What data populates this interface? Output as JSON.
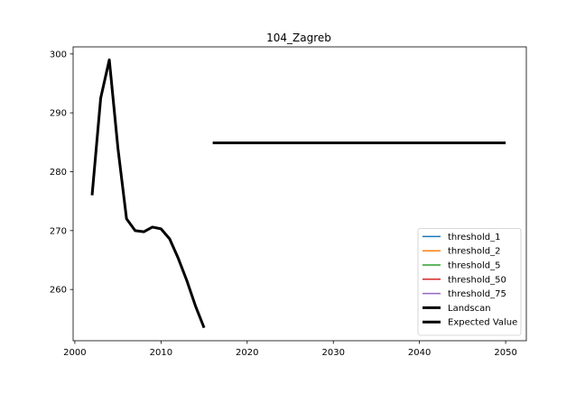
{
  "chart_data": {
    "type": "line",
    "title": "104_Zagreb",
    "xlabel": "",
    "ylabel": "",
    "xlim": [
      1999.8,
      2052.4
    ],
    "ylim": [
      251.3,
      301.2
    ],
    "xticks": [
      2000,
      2010,
      2020,
      2030,
      2040,
      2050
    ],
    "yticks": [
      260,
      270,
      280,
      290,
      300
    ],
    "grid": false,
    "legend_position": "lower right",
    "series": [
      {
        "name": "threshold_1",
        "color": "#1f77b4",
        "linewidth": 1.5,
        "x": [],
        "y": []
      },
      {
        "name": "threshold_2",
        "color": "#ff7f0e",
        "linewidth": 1.5,
        "x": [],
        "y": []
      },
      {
        "name": "threshold_5",
        "color": "#2ca02c",
        "linewidth": 1.5,
        "x": [],
        "y": []
      },
      {
        "name": "threshold_50",
        "color": "#d62728",
        "linewidth": 1.5,
        "x": [],
        "y": []
      },
      {
        "name": "threshold_75",
        "color": "#9467bd",
        "linewidth": 1.5,
        "x": [],
        "y": []
      },
      {
        "name": "Landscan",
        "color": "#000000",
        "linewidth": 3,
        "x": [
          2002,
          2003,
          2004,
          2005,
          2006,
          2007,
          2008,
          2009,
          2010,
          2011,
          2012,
          2013,
          2014,
          2015
        ],
        "y": [
          276.0,
          292.5,
          299.0,
          284.0,
          272.0,
          270.0,
          269.8,
          270.6,
          270.3,
          268.6,
          265.3,
          261.5,
          257.2,
          253.5
        ]
      },
      {
        "name": "Expected Value",
        "color": "#000000",
        "linewidth": 3,
        "x": [
          2016,
          2050
        ],
        "y": [
          284.9,
          284.9
        ]
      }
    ]
  }
}
